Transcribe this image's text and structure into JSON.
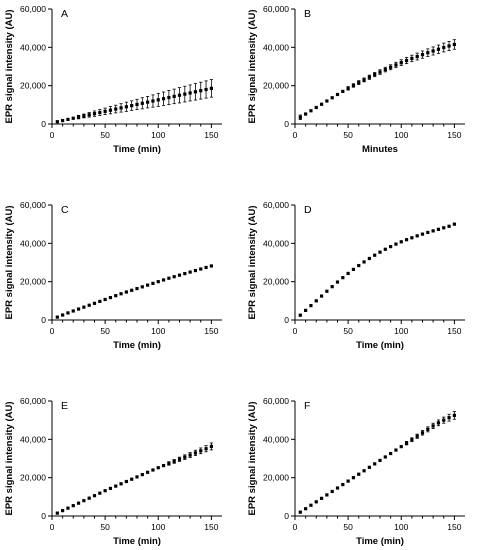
{
  "chart_data": [
    {
      "type": "scatter",
      "panel": "A",
      "xlabel": "Time (min)",
      "ylabel": "EPR signal intensity (AU)",
      "xlim": [
        0,
        160
      ],
      "ylim": [
        0,
        60000
      ],
      "xticks": [
        "0",
        "50",
        "100",
        "150"
      ],
      "yticks": [
        "0",
        "20,000",
        "40,000",
        "60,000"
      ],
      "x": [
        5,
        10,
        15,
        20,
        25,
        30,
        35,
        40,
        45,
        50,
        55,
        60,
        65,
        70,
        75,
        80,
        85,
        90,
        95,
        100,
        105,
        110,
        115,
        120,
        125,
        130,
        135,
        140,
        145,
        150
      ],
      "y": [
        1200,
        1800,
        2400,
        3000,
        3600,
        4200,
        4800,
        5400,
        6000,
        6600,
        7200,
        7800,
        8400,
        9000,
        9600,
        10200,
        10800,
        11400,
        12000,
        12600,
        13200,
        13800,
        14400,
        15000,
        15600,
        16200,
        16800,
        17400,
        18000,
        18600
      ],
      "error": [
        300,
        400,
        500,
        700,
        900,
        1000,
        1200,
        1400,
        1500,
        1700,
        1900,
        2000,
        2200,
        2400,
        2500,
        2700,
        2900,
        3000,
        3200,
        3400,
        3500,
        3700,
        3800,
        4000,
        4100,
        4200,
        4300,
        4400,
        4500,
        4600
      ]
    },
    {
      "type": "scatter",
      "panel": "B",
      "xlabel": "Minutes",
      "ylabel": "EPR signal intensity (AU)",
      "xlim": [
        0,
        160
      ],
      "ylim": [
        0,
        60000
      ],
      "xticks": [
        "0",
        "50",
        "100",
        "150"
      ],
      "yticks": [
        "0",
        "20,000",
        "40,000",
        "60,000"
      ],
      "x": [
        5,
        10,
        15,
        20,
        25,
        30,
        35,
        40,
        45,
        50,
        55,
        60,
        65,
        70,
        75,
        80,
        85,
        90,
        95,
        100,
        105,
        110,
        115,
        120,
        125,
        130,
        135,
        140,
        145,
        150
      ],
      "y": [
        3500,
        5200,
        6900,
        8600,
        10300,
        12000,
        13700,
        15400,
        17000,
        18600,
        20100,
        21600,
        23000,
        24400,
        25800,
        27100,
        28400,
        29600,
        30800,
        32000,
        33100,
        34200,
        35200,
        36200,
        37200,
        38100,
        39000,
        39900,
        40700,
        41500
      ],
      "error": [
        1200,
        800,
        600,
        600,
        600,
        700,
        700,
        800,
        800,
        900,
        900,
        1000,
        1000,
        1100,
        1100,
        1200,
        1200,
        1300,
        1400,
        1500,
        1600,
        1700,
        1800,
        1900,
        2000,
        2100,
        2200,
        2300,
        2400,
        2500
      ]
    },
    {
      "type": "scatter",
      "panel": "C",
      "xlabel": "Time (min)",
      "ylabel": "EPR signal intensity (AU)",
      "xlim": [
        0,
        160
      ],
      "ylim": [
        0,
        60000
      ],
      "xticks": [
        "0",
        "50",
        "100",
        "150"
      ],
      "yticks": [
        "0",
        "20,000",
        "40,000",
        "60,000"
      ],
      "x": [
        5,
        10,
        15,
        20,
        25,
        30,
        35,
        40,
        45,
        50,
        55,
        60,
        65,
        70,
        75,
        80,
        85,
        90,
        95,
        100,
        105,
        110,
        115,
        120,
        125,
        130,
        135,
        140,
        145,
        150
      ],
      "y": [
        1500,
        2600,
        3700,
        4700,
        5700,
        6700,
        7700,
        8700,
        9700,
        10700,
        11700,
        12700,
        13700,
        14600,
        15500,
        16400,
        17300,
        18200,
        19100,
        20000,
        20900,
        21800,
        22600,
        23400,
        24200,
        25000,
        25800,
        26600,
        27400,
        28200
      ],
      "error": [
        300,
        300,
        300,
        300,
        400,
        400,
        400,
        400,
        400,
        400,
        500,
        500,
        500,
        500,
        500,
        500,
        500,
        500,
        500,
        600,
        600,
        600,
        600,
        600,
        600,
        600,
        600,
        600,
        600,
        600
      ]
    },
    {
      "type": "scatter",
      "panel": "D",
      "xlabel": "Time (min)",
      "ylabel": "EPR signal intensity (AU)",
      "xlim": [
        0,
        160
      ],
      "ylim": [
        0,
        60000
      ],
      "xticks": [
        "0",
        "50",
        "100",
        "150"
      ],
      "yticks": [
        "0",
        "20,000",
        "40,000",
        "60,000"
      ],
      "x": [
        5,
        10,
        15,
        20,
        25,
        30,
        35,
        40,
        45,
        50,
        55,
        60,
        65,
        70,
        75,
        80,
        85,
        90,
        95,
        100,
        105,
        110,
        115,
        120,
        125,
        130,
        135,
        140,
        145,
        150
      ],
      "y": [
        2500,
        5000,
        7500,
        10000,
        12500,
        15000,
        17400,
        19800,
        22100,
        24300,
        26400,
        28400,
        30300,
        32100,
        33800,
        35400,
        36900,
        38300,
        39600,
        40800,
        41900,
        42900,
        43900,
        44800,
        45700,
        46500,
        47300,
        48100,
        48900,
        50000
      ],
      "error": [
        200,
        200,
        200,
        200,
        200,
        200,
        200,
        200,
        200,
        200,
        200,
        200,
        200,
        200,
        200,
        200,
        200,
        200,
        200,
        200,
        200,
        200,
        200,
        200,
        200,
        200,
        200,
        200,
        200,
        200
      ]
    },
    {
      "type": "scatter",
      "panel": "E",
      "xlabel": "Time (min)",
      "ylabel": "EPR signal intensity (AU)",
      "xlim": [
        0,
        160
      ],
      "ylim": [
        0,
        60000
      ],
      "xticks": [
        "0",
        "50",
        "100",
        "150"
      ],
      "yticks": [
        "0",
        "20,000",
        "40,000",
        "60,000"
      ],
      "x": [
        5,
        10,
        15,
        20,
        25,
        30,
        35,
        40,
        45,
        50,
        55,
        60,
        65,
        70,
        75,
        80,
        85,
        90,
        95,
        100,
        105,
        110,
        115,
        120,
        125,
        130,
        135,
        140,
        145,
        150
      ],
      "y": [
        1500,
        2800,
        4100,
        5400,
        6700,
        8000,
        9300,
        10600,
        11900,
        13200,
        14400,
        15600,
        16800,
        18000,
        19200,
        20400,
        21600,
        22800,
        24000,
        25200,
        26300,
        27400,
        28500,
        29600,
        30700,
        31800,
        32900,
        34000,
        35100,
        36300
      ],
      "error": [
        200,
        200,
        200,
        200,
        200,
        200,
        200,
        200,
        300,
        300,
        300,
        300,
        300,
        300,
        400,
        400,
        400,
        500,
        600,
        700,
        800,
        900,
        1000,
        1100,
        1200,
        1300,
        1400,
        1500,
        1600,
        1800
      ]
    },
    {
      "type": "scatter",
      "panel": "F",
      "xlabel": "Time (min)",
      "ylabel": "EPR signal intensity (AU)",
      "xlim": [
        0,
        160
      ],
      "ylim": [
        0,
        60000
      ],
      "xticks": [
        "0",
        "50",
        "100",
        "150"
      ],
      "yticks": [
        "0",
        "20,000",
        "40,000",
        "60,000"
      ],
      "x": [
        5,
        10,
        15,
        20,
        25,
        30,
        35,
        40,
        45,
        50,
        55,
        60,
        65,
        70,
        75,
        80,
        85,
        90,
        95,
        100,
        105,
        110,
        115,
        120,
        125,
        130,
        135,
        140,
        145,
        150
      ],
      "y": [
        2000,
        3800,
        5600,
        7400,
        9200,
        11000,
        12800,
        14600,
        16400,
        18200,
        20000,
        21800,
        23600,
        25400,
        27200,
        29000,
        30800,
        32600,
        34400,
        36200,
        38000,
        39800,
        41600,
        43400,
        45200,
        47000,
        48600,
        50000,
        51300,
        52500
      ],
      "error": [
        200,
        200,
        200,
        200,
        200,
        200,
        200,
        300,
        300,
        300,
        300,
        400,
        400,
        400,
        500,
        500,
        600,
        600,
        700,
        800,
        900,
        1000,
        1100,
        1200,
        1300,
        1400,
        1500,
        1600,
        1800,
        2000
      ]
    }
  ]
}
